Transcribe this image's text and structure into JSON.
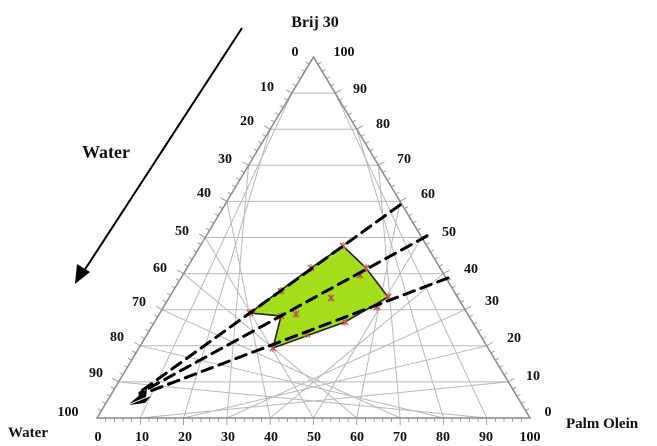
{
  "title_top": "Brij 30",
  "label_left_corner": "Water",
  "label_right_corner": "Palm Olein",
  "arrow_label": "Water",
  "left_ticks": [
    "0",
    "10",
    "20",
    "30",
    "40",
    "50",
    "60",
    "70",
    "80",
    "90",
    "100"
  ],
  "right_ticks": [
    "100",
    "90",
    "80",
    "70",
    "60",
    "50",
    "40",
    "30",
    "20",
    "10",
    "0"
  ],
  "bottom_ticks": [
    "0",
    "10",
    "20",
    "30",
    "40",
    "50",
    "60",
    "70",
    "80",
    "90",
    "100"
  ],
  "colors": {
    "grid": "#b8b8b8",
    "frame": "#8a8a8a",
    "region_fill": "#a3e01b",
    "region_stroke": "#222222",
    "marker": "#c0504d",
    "dashed": "#000000"
  }
}
